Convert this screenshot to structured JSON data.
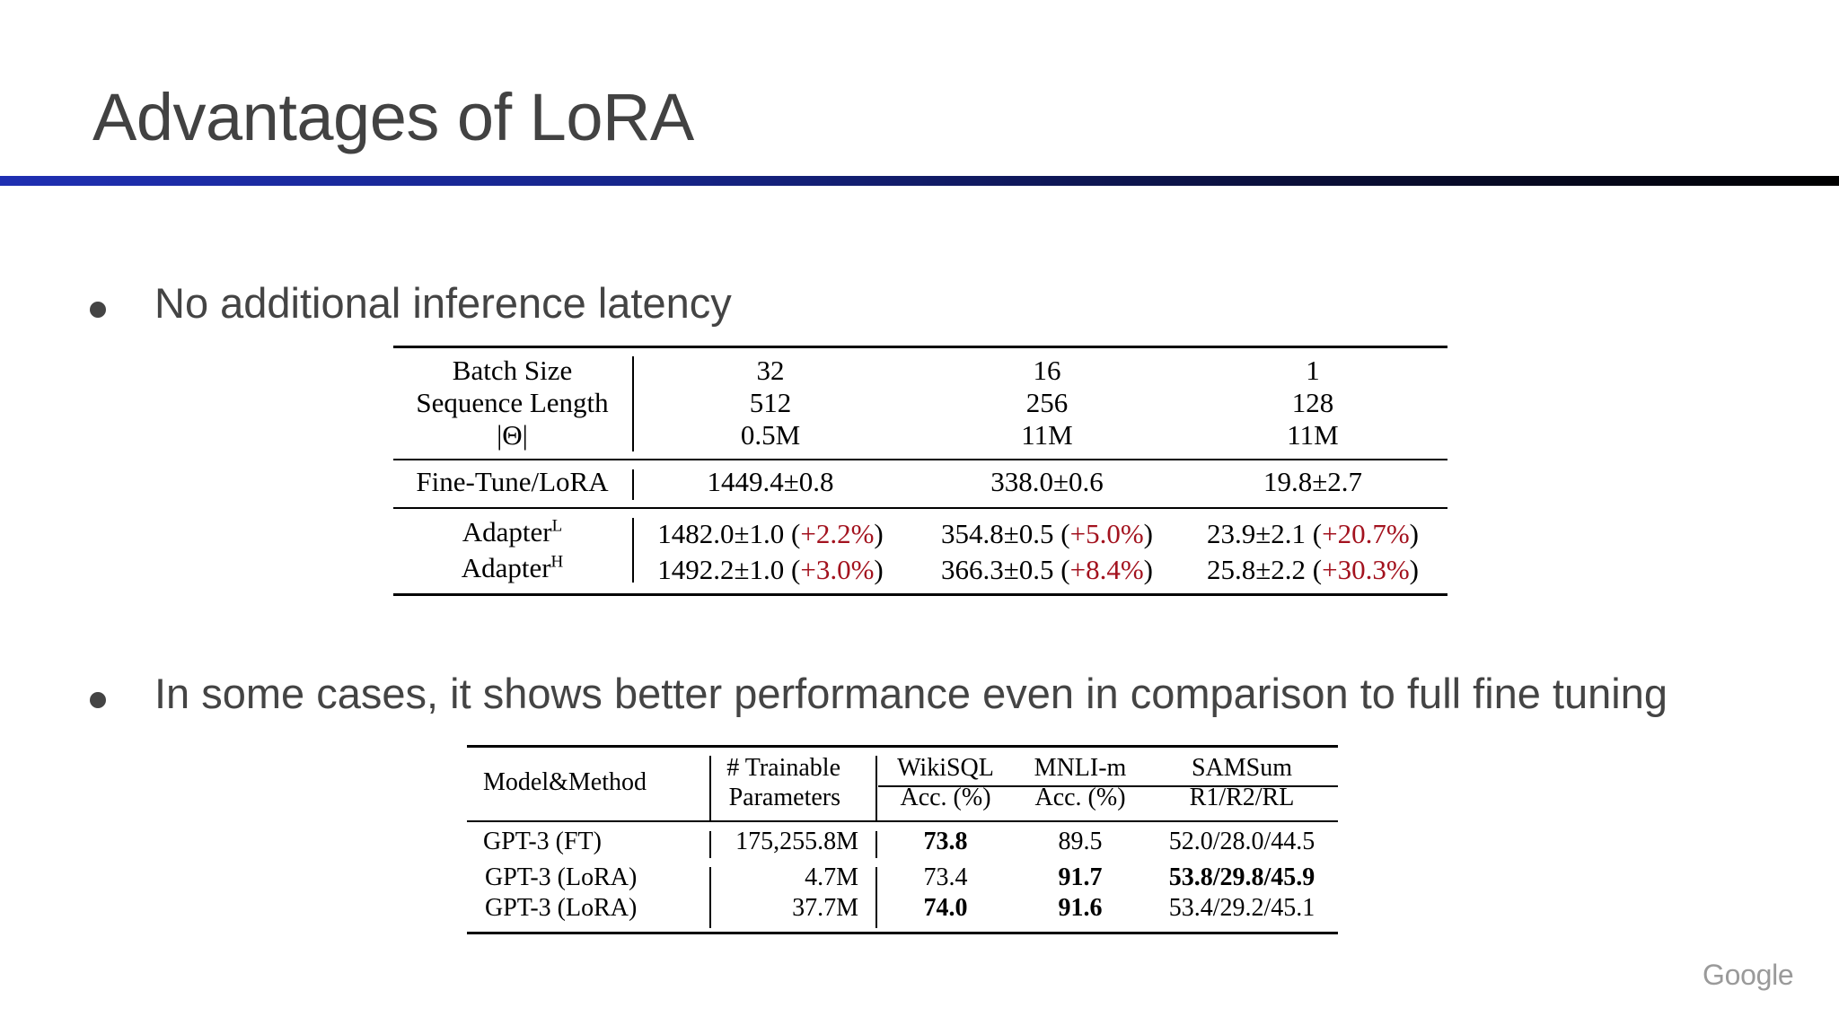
{
  "slide": {
    "title": "Advantages of LoRA",
    "bullets": [
      "No additional inference latency",
      "In some cases, it shows better performance even in comparison to full fine tuning"
    ],
    "logo": "Google"
  },
  "table1": {
    "header": {
      "labels": [
        "Batch Size",
        "Sequence Length",
        "|Θ|"
      ],
      "columns": [
        [
          "32",
          "512",
          "0.5M"
        ],
        [
          "16",
          "256",
          "11M"
        ],
        [
          "1",
          "128",
          "11M"
        ]
      ]
    },
    "finetune": {
      "label": "Fine-Tune/LoRA",
      "values": [
        "1449.4±0.8",
        "338.0±0.6",
        "19.8±2.7"
      ]
    },
    "adapters": [
      {
        "name": "Adapter",
        "sup": "L",
        "values": [
          {
            "main": "1482.0±1.0",
            "pct": "+2.2%"
          },
          {
            "main": "354.8±0.5",
            "pct": "+5.0%"
          },
          {
            "main": "23.9±2.1",
            "pct": "+20.7%"
          }
        ]
      },
      {
        "name": "Adapter",
        "sup": "H",
        "values": [
          {
            "main": "1492.2±1.0",
            "pct": "+3.0%"
          },
          {
            "main": "366.3±0.5",
            "pct": "+8.4%"
          },
          {
            "main": "25.8±2.2",
            "pct": "+30.3%"
          }
        ]
      }
    ]
  },
  "table2": {
    "headers": {
      "model": "Model&Method",
      "params": [
        "# Trainable",
        "Parameters"
      ],
      "wikisql": [
        "WikiSQL",
        "Acc. (%)"
      ],
      "mnli": [
        "MNLI-m",
        "Acc. (%)"
      ],
      "samsum": [
        "SAMSum",
        "R1/R2/RL"
      ]
    },
    "rows": [
      {
        "model": "GPT-3 (FT)",
        "params": "175,255.8M",
        "wikisql": "73.8",
        "mnli": "89.5",
        "samsum": "52.0/28.0/44.5"
      },
      {
        "model": "GPT-3 (LoRA)",
        "params": "4.7M",
        "wikisql": "73.4",
        "mnli": "91.7",
        "samsum": "53.8/29.8/45.9"
      },
      {
        "model": "GPT-3 (LoRA)",
        "params": "37.7M",
        "wikisql": "74.0",
        "mnli": "91.6",
        "samsum": "53.4/29.2/45.1"
      }
    ]
  }
}
